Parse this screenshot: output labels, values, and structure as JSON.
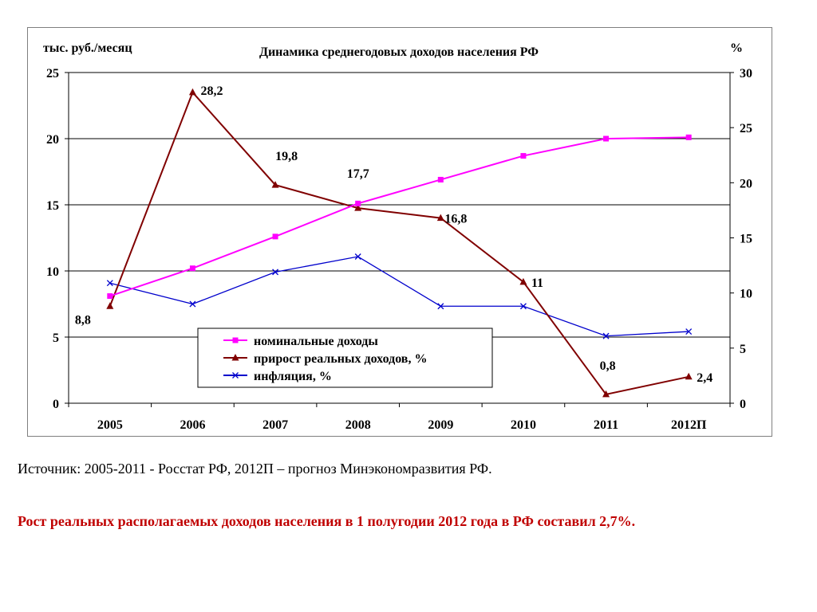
{
  "chart_data": {
    "type": "line",
    "title": "Динамика среднегодовых доходов населения РФ",
    "ylabel_left": "тыс. руб./месяц",
    "ylabel_right": "%",
    "categories": [
      "2005",
      "2006",
      "2007",
      "2008",
      "2009",
      "2010",
      "2011",
      "2012П"
    ],
    "ylim_left": [
      0,
      25
    ],
    "ylim_right": [
      0,
      30
    ],
    "yticks_left": [
      "0",
      "5",
      "10",
      "15",
      "20",
      "25"
    ],
    "yticks_right": [
      "0",
      "5",
      "10",
      "15",
      "20",
      "25",
      "30"
    ],
    "grid": "horizontal",
    "legend_position": "bottom-center",
    "series": [
      {
        "name": "номинальные доходы",
        "axis": "left",
        "color": "#ff00ff",
        "marker": "square",
        "values": [
          8.1,
          10.2,
          12.6,
          15.1,
          16.9,
          18.7,
          20.0,
          20.1
        ]
      },
      {
        "name": "прирост реальных доходов, %",
        "axis": "right",
        "color": "#800000",
        "marker": "triangle",
        "values": [
          8.8,
          28.2,
          19.8,
          17.7,
          16.8,
          11,
          0.8,
          2.4
        ],
        "labels": [
          "8,8",
          "28,2",
          "19,8",
          "17,7",
          "16,8",
          "11",
          "0,8",
          "2,4"
        ]
      },
      {
        "name": "инфляция, %",
        "axis": "right",
        "color": "#0000cc",
        "marker": "x",
        "values": [
          10.9,
          9.0,
          11.9,
          13.3,
          8.8,
          8.8,
          6.1,
          6.5
        ]
      }
    ]
  },
  "source_text": "Источник: 2005-2011 - Росстат РФ, 2012П – прогноз Минэкономразвития РФ.",
  "summary_text": "Рост реальных располагаемых доходов населения в 1 полугодии 2012 года в РФ составил 2,7%."
}
